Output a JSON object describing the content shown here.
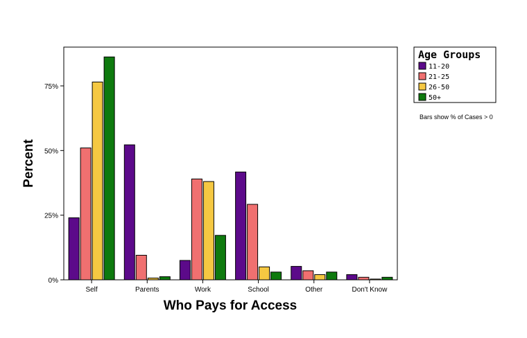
{
  "chart_data": {
    "type": "bar",
    "xlabel": "Who Pays for Access",
    "ylabel": "Percent",
    "categories": [
      "Self",
      "Parents",
      "Work",
      "School",
      "Other",
      "Don't Know"
    ],
    "ylim": [
      0,
      90
    ],
    "yticks": [
      0,
      25,
      50,
      75
    ],
    "ytick_labels": [
      "0%",
      "25%",
      "50%",
      "75%"
    ],
    "legend": {
      "title": "Age Groups",
      "position": "top-right"
    },
    "note": "Bars show % of Cases > 0",
    "series": [
      {
        "name": "11-20",
        "color": "#5c0a8a",
        "values": [
          24,
          52.2,
          7.5,
          41.7,
          5.2,
          2
        ]
      },
      {
        "name": "21-25",
        "color": "#f07070",
        "values": [
          51,
          9.5,
          39,
          29.2,
          3.5,
          1
        ]
      },
      {
        "name": "26-50",
        "color": "#f5c842",
        "values": [
          76.5,
          0.7,
          38,
          5,
          2,
          0.3
        ]
      },
      {
        "name": "50+",
        "color": "#0e7a0e",
        "values": [
          86.2,
          1.2,
          17.2,
          3,
          3,
          1
        ]
      }
    ],
    "grid": false
  }
}
